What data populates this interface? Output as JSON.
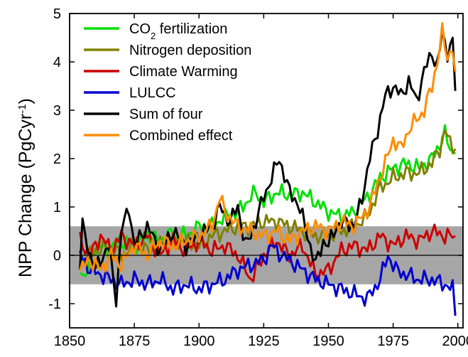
{
  "chart_data": {
    "type": "line",
    "title": "",
    "xlabel": "",
    "ylabel": "NPP Change (PgCyr-1)",
    "ylabel_parts": {
      "main": "NPP Change (PgCyr",
      "sup": "-1",
      "close": ")"
    },
    "xlim": [
      1850,
      2002
    ],
    "ylim": [
      -1.5,
      5
    ],
    "xticks": [
      "1850",
      "1875",
      "1900",
      "1925",
      "1950",
      "1975",
      "2000"
    ],
    "yticks": [
      "-1",
      "0",
      "1",
      "2",
      "3",
      "4",
      "5"
    ],
    "zero_line": true,
    "shaded_band": {
      "from": -0.6,
      "to": 0.6,
      "color": "#a6a6a6"
    },
    "legend": {
      "placement": "top-left",
      "items": [
        {
          "parts": [
            "CO",
            "2",
            " fertilization"
          ],
          "sub_index": 1,
          "color": "#00e000"
        },
        {
          "parts": [
            "Nitrogen deposition"
          ],
          "color": "#808000"
        },
        {
          "parts": [
            "Climate Warming"
          ],
          "color": "#cc0000"
        },
        {
          "parts": [
            "LULCC"
          ],
          "color": "#0000d0"
        },
        {
          "parts": [
            "Sum of four"
          ],
          "color": "#000000"
        },
        {
          "parts": [
            "Combined effect"
          ],
          "color": "#ff8c00"
        }
      ]
    },
    "x_start": 1854,
    "x_end": 1999,
    "series": [
      {
        "name": "CO2 fertilization",
        "color": "#00e000",
        "knots": [
          [
            1854,
            -0.2
          ],
          [
            1856,
            -0.5
          ],
          [
            1860,
            0.2
          ],
          [
            1865,
            0.1
          ],
          [
            1870,
            0.3
          ],
          [
            1875,
            0.2
          ],
          [
            1880,
            0.4
          ],
          [
            1885,
            0.3
          ],
          [
            1890,
            0.5
          ],
          [
            1895,
            0.4
          ],
          [
            1900,
            0.6
          ],
          [
            1905,
            0.6
          ],
          [
            1910,
            0.8
          ],
          [
            1915,
            0.9
          ],
          [
            1920,
            1.2
          ],
          [
            1922,
            1.3
          ],
          [
            1925,
            1.1
          ],
          [
            1930,
            1.3
          ],
          [
            1935,
            1.25
          ],
          [
            1940,
            1.3
          ],
          [
            1945,
            1.1
          ],
          [
            1950,
            0.9
          ],
          [
            1955,
            0.8
          ],
          [
            1960,
            0.9
          ],
          [
            1965,
            1.2
          ],
          [
            1970,
            1.6
          ],
          [
            1975,
            1.8
          ],
          [
            1980,
            1.9
          ],
          [
            1985,
            1.8
          ],
          [
            1990,
            2.0
          ],
          [
            1993,
            2.3
          ],
          [
            1995,
            2.5
          ],
          [
            1997,
            2.2
          ],
          [
            1999,
            2.1
          ]
        ]
      },
      {
        "name": "Nitrogen deposition",
        "color": "#808000",
        "knots": [
          [
            1854,
            -0.1
          ],
          [
            1860,
            0.1
          ],
          [
            1865,
            0.2
          ],
          [
            1870,
            0.0
          ],
          [
            1875,
            0.2
          ],
          [
            1880,
            0.1
          ],
          [
            1885,
            0.2
          ],
          [
            1890,
            0.3
          ],
          [
            1895,
            0.3
          ],
          [
            1900,
            0.2
          ],
          [
            1905,
            0.4
          ],
          [
            1910,
            0.5
          ],
          [
            1915,
            0.6
          ],
          [
            1920,
            0.6
          ],
          [
            1925,
            0.7
          ],
          [
            1930,
            0.7
          ],
          [
            1935,
            0.6
          ],
          [
            1940,
            0.5
          ],
          [
            1945,
            0.4
          ],
          [
            1950,
            0.4
          ],
          [
            1955,
            0.5
          ],
          [
            1960,
            0.6
          ],
          [
            1965,
            0.8
          ],
          [
            1970,
            1.4
          ],
          [
            1975,
            1.6
          ],
          [
            1980,
            1.7
          ],
          [
            1985,
            1.7
          ],
          [
            1990,
            1.9
          ],
          [
            1993,
            2.2
          ],
          [
            1995,
            2.6
          ],
          [
            1997,
            2.3
          ],
          [
            1999,
            2.2
          ]
        ]
      },
      {
        "name": "Climate Warming",
        "color": "#cc0000",
        "knots": [
          [
            1854,
            0.3
          ],
          [
            1858,
            0.0
          ],
          [
            1862,
            0.4
          ],
          [
            1866,
            0.1
          ],
          [
            1870,
            0.4
          ],
          [
            1875,
            0.2
          ],
          [
            1880,
            0.4
          ],
          [
            1885,
            0.0
          ],
          [
            1890,
            0.3
          ],
          [
            1895,
            0.1
          ],
          [
            1900,
            0.3
          ],
          [
            1905,
            0.1
          ],
          [
            1910,
            0.2
          ],
          [
            1915,
            0.0
          ],
          [
            1920,
            -0.5
          ],
          [
            1925,
            0.0
          ],
          [
            1930,
            0.3
          ],
          [
            1935,
            0.0
          ],
          [
            1940,
            0.2
          ],
          [
            1945,
            -0.4
          ],
          [
            1950,
            -0.3
          ],
          [
            1955,
            0.1
          ],
          [
            1960,
            0.2
          ],
          [
            1965,
            0.1
          ],
          [
            1970,
            0.4
          ],
          [
            1975,
            0.2
          ],
          [
            1980,
            0.4
          ],
          [
            1985,
            0.3
          ],
          [
            1990,
            0.5
          ],
          [
            1995,
            0.4
          ],
          [
            1999,
            0.4
          ]
        ]
      },
      {
        "name": "LULCC",
        "color": "#0000d0",
        "knots": [
          [
            1854,
            0.0
          ],
          [
            1858,
            -0.3
          ],
          [
            1862,
            -0.4
          ],
          [
            1866,
            -0.5
          ],
          [
            1870,
            -0.6
          ],
          [
            1875,
            -0.5
          ],
          [
            1880,
            -0.6
          ],
          [
            1885,
            -0.5
          ],
          [
            1890,
            -0.7
          ],
          [
            1895,
            -0.6
          ],
          [
            1900,
            -0.7
          ],
          [
            1905,
            -0.6
          ],
          [
            1910,
            -0.5
          ],
          [
            1915,
            -0.3
          ],
          [
            1920,
            -0.2
          ],
          [
            1925,
            -0.1
          ],
          [
            1928,
            0.2
          ],
          [
            1932,
            0.0
          ],
          [
            1935,
            -0.1
          ],
          [
            1940,
            -0.3
          ],
          [
            1945,
            -0.5
          ],
          [
            1950,
            -0.6
          ],
          [
            1955,
            -0.7
          ],
          [
            1960,
            -0.8
          ],
          [
            1965,
            -0.9
          ],
          [
            1970,
            -0.5
          ],
          [
            1973,
            0.0
          ],
          [
            1976,
            -0.3
          ],
          [
            1980,
            -0.4
          ],
          [
            1985,
            -0.5
          ],
          [
            1990,
            -0.5
          ],
          [
            1995,
            -0.6
          ],
          [
            1998,
            -0.7
          ],
          [
            1999,
            -1.25
          ]
        ]
      },
      {
        "name": "Sum of four",
        "color": "#000000",
        "knots": [
          [
            1854,
            -0.2
          ],
          [
            1855,
            0.6
          ],
          [
            1858,
            0.0
          ],
          [
            1860,
            -0.3
          ],
          [
            1865,
            0.2
          ],
          [
            1868,
            -0.9
          ],
          [
            1870,
            0.5
          ],
          [
            1873,
            1.0
          ],
          [
            1875,
            0.2
          ],
          [
            1880,
            0.6
          ],
          [
            1885,
            0.1
          ],
          [
            1890,
            0.5
          ],
          [
            1895,
            0.2
          ],
          [
            1900,
            0.4
          ],
          [
            1905,
            0.6
          ],
          [
            1908,
            1.0
          ],
          [
            1912,
            0.7
          ],
          [
            1915,
            1.0
          ],
          [
            1918,
            0.2
          ],
          [
            1920,
            0.4
          ],
          [
            1925,
            1.2
          ],
          [
            1928,
            1.6
          ],
          [
            1931,
            2.0
          ],
          [
            1935,
            1.3
          ],
          [
            1938,
            1.1
          ],
          [
            1941,
            0.6
          ],
          [
            1945,
            -0.2
          ],
          [
            1948,
            0.3
          ],
          [
            1950,
            0.2
          ],
          [
            1953,
            0.6
          ],
          [
            1957,
            0.7
          ],
          [
            1960,
            0.6
          ],
          [
            1963,
            1.2
          ],
          [
            1966,
            2.0
          ],
          [
            1969,
            2.6
          ],
          [
            1972,
            3.3
          ],
          [
            1975,
            3.5
          ],
          [
            1978,
            3.3
          ],
          [
            1981,
            3.6
          ],
          [
            1984,
            3.2
          ],
          [
            1987,
            3.8
          ],
          [
            1990,
            4.2
          ],
          [
            1992,
            3.9
          ],
          [
            1994,
            4.6
          ],
          [
            1996,
            4.2
          ],
          [
            1998,
            4.4
          ],
          [
            1999,
            3.4
          ]
        ]
      },
      {
        "name": "Combined effect",
        "color": "#ff8c00",
        "knots": [
          [
            1854,
            -0.3
          ],
          [
            1858,
            -0.1
          ],
          [
            1862,
            -0.3
          ],
          [
            1866,
            0.0
          ],
          [
            1870,
            -0.2
          ],
          [
            1875,
            0.2
          ],
          [
            1880,
            0.0
          ],
          [
            1885,
            0.3
          ],
          [
            1890,
            0.2
          ],
          [
            1895,
            0.3
          ],
          [
            1900,
            0.4
          ],
          [
            1905,
            0.6
          ],
          [
            1908,
            1.2
          ],
          [
            1910,
            0.9
          ],
          [
            1915,
            0.6
          ],
          [
            1920,
            0.5
          ],
          [
            1925,
            0.4
          ],
          [
            1930,
            0.5
          ],
          [
            1935,
            0.3
          ],
          [
            1940,
            0.5
          ],
          [
            1945,
            0.6
          ],
          [
            1950,
            0.5
          ],
          [
            1955,
            0.7
          ],
          [
            1960,
            0.6
          ],
          [
            1963,
            0.8
          ],
          [
            1966,
            1.0
          ],
          [
            1969,
            1.5
          ],
          [
            1972,
            1.9
          ],
          [
            1975,
            2.4
          ],
          [
            1978,
            2.2
          ],
          [
            1981,
            2.6
          ],
          [
            1984,
            2.8
          ],
          [
            1987,
            3.0
          ],
          [
            1990,
            3.5
          ],
          [
            1992,
            4.0
          ],
          [
            1994,
            4.6
          ],
          [
            1996,
            4.1
          ],
          [
            1998,
            4.3
          ],
          [
            1999,
            3.8
          ]
        ]
      }
    ]
  }
}
